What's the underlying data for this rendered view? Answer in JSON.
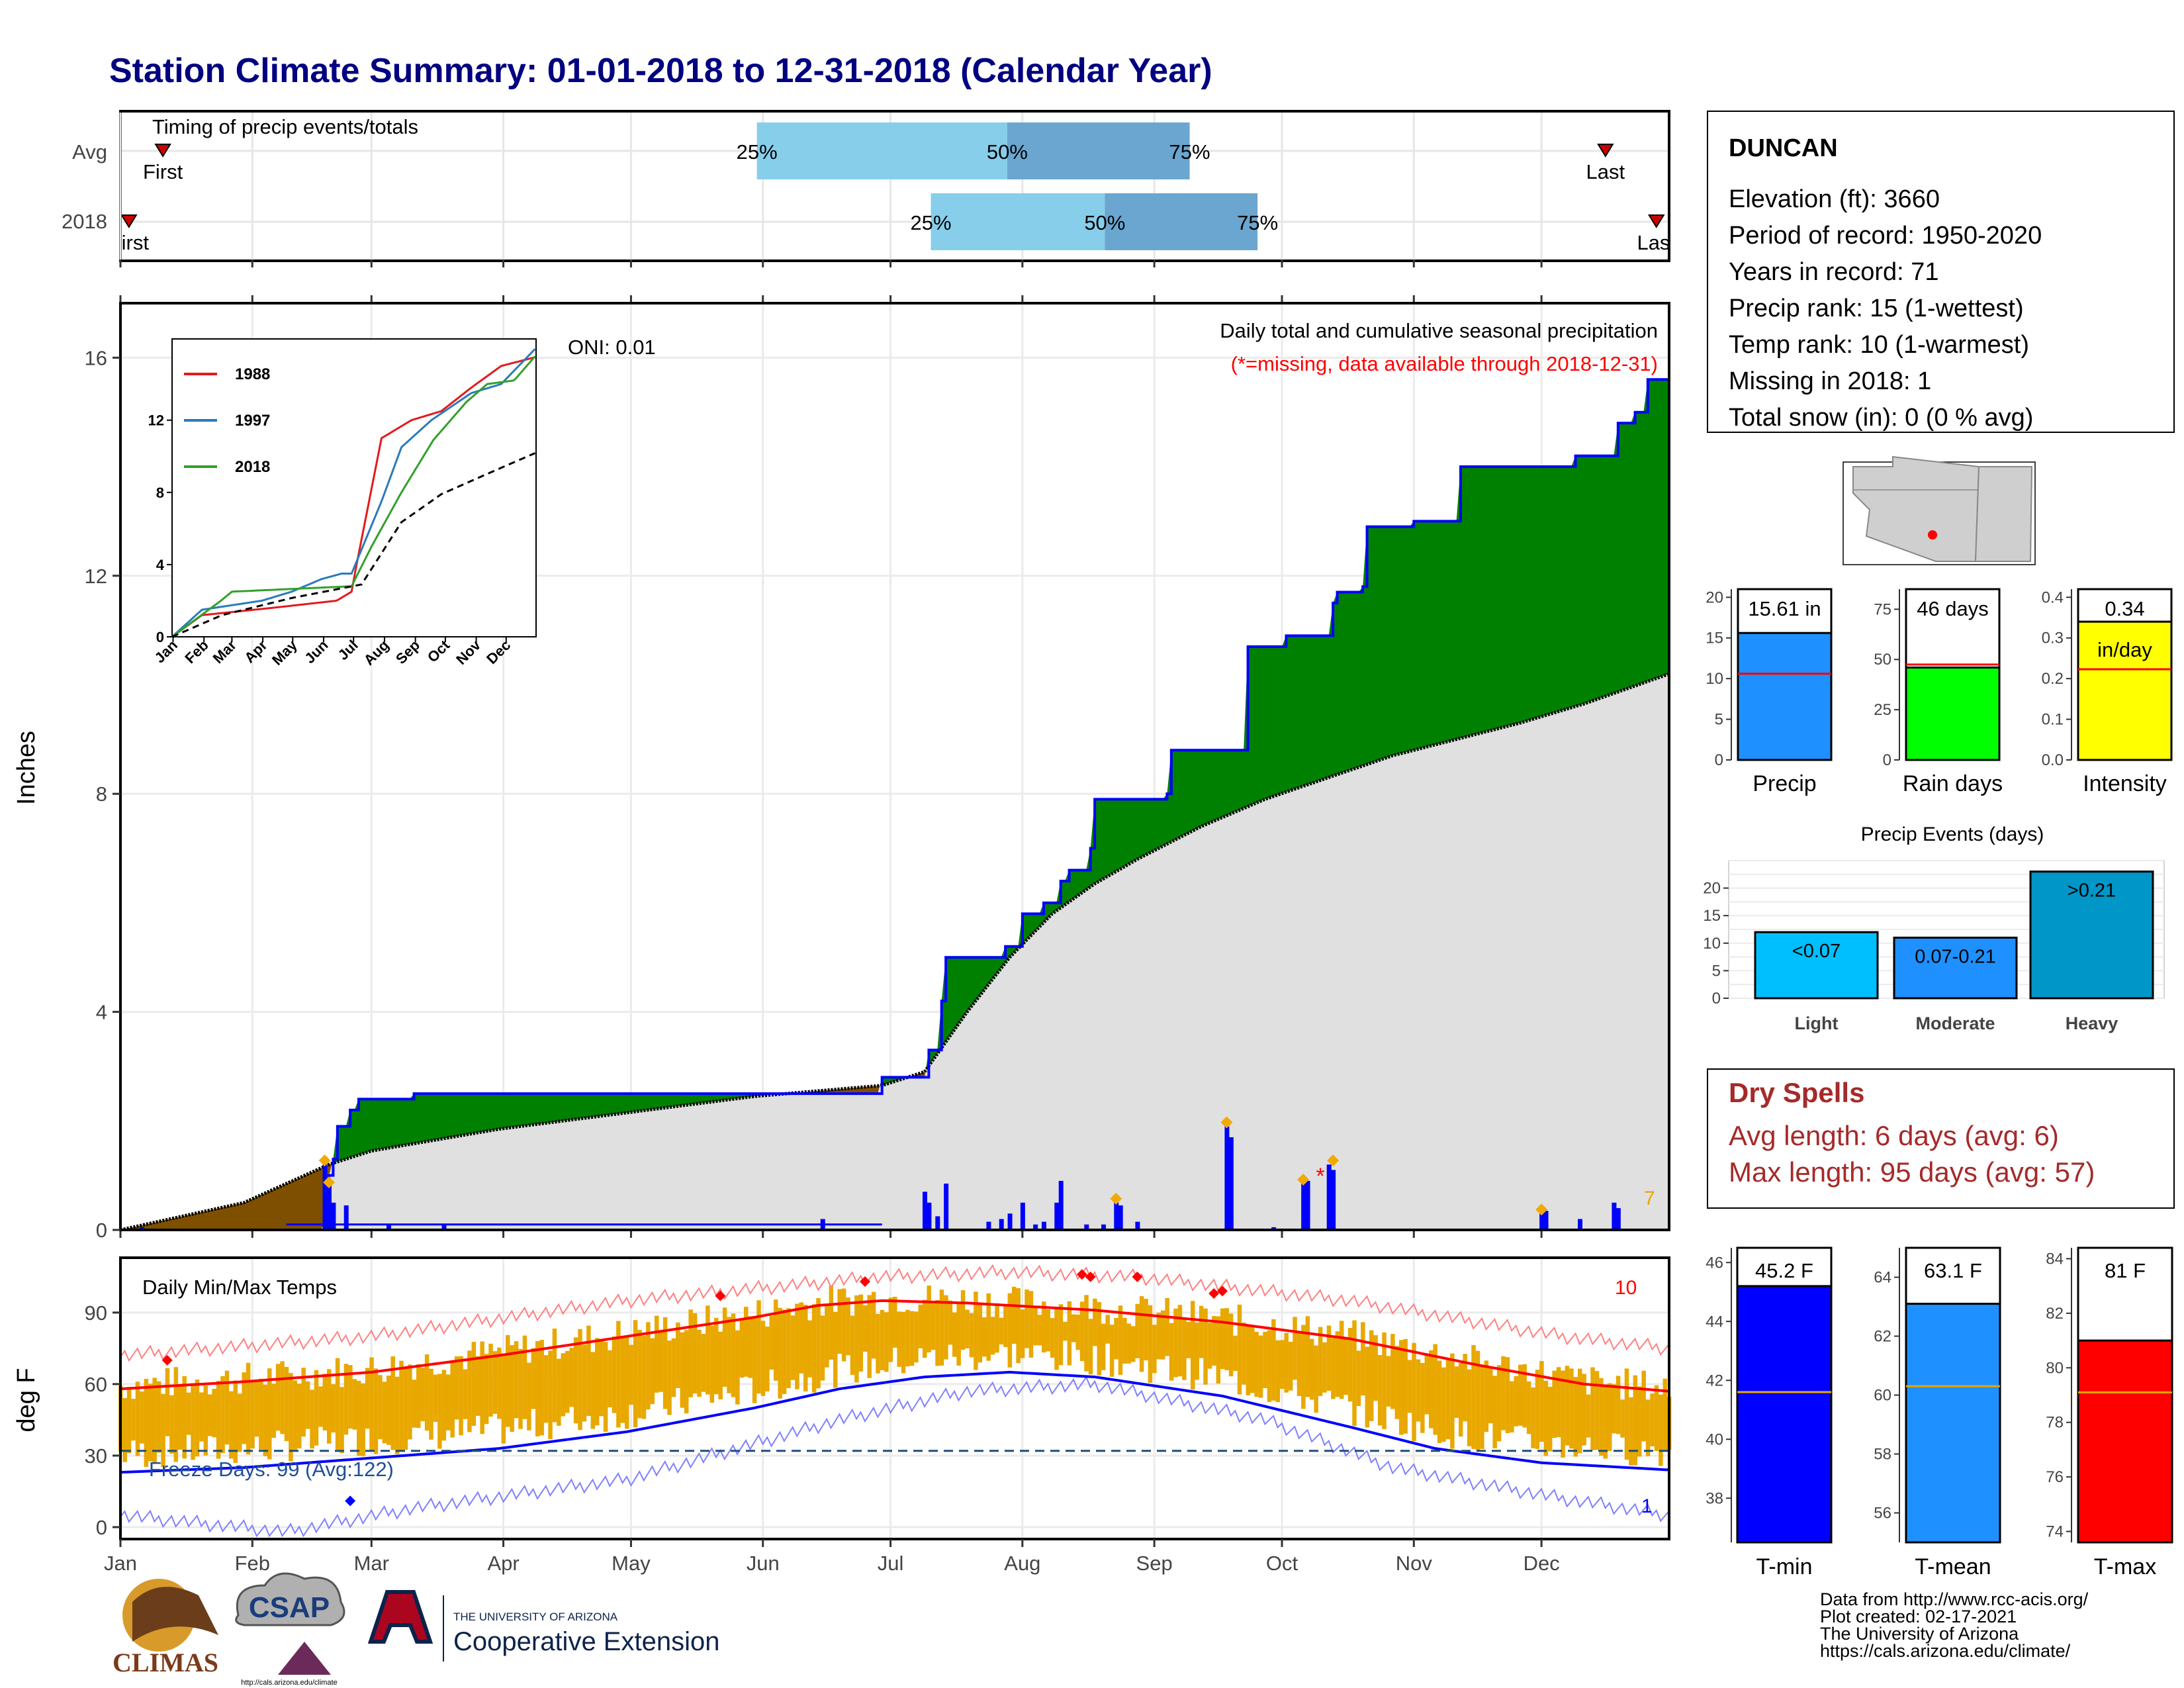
{
  "title": "Station Climate Summary: 01-01-2018 to 12-31-2018 (Calendar Year)",
  "colors": {
    "title": "#000080",
    "frame": "#000000",
    "green": "#008000",
    "brown": "#7f4f00",
    "gray_area": "#e0e0e0",
    "blue_line": "#0000ff",
    "red": "#ff0000",
    "orange": "#e8a800",
    "light_blue": "#87ceeb",
    "mid_blue": "#6aa6cf",
    "dodger": "#1e90ff",
    "lime": "#00ff00",
    "yellow": "#ffff00",
    "bar_blue": "#00bfff",
    "heavy_blue": "#0096c8",
    "drys": "#a52a2a"
  },
  "timing": {
    "label": "Timing of precip events/totals",
    "rows": [
      {
        "name": "Avg",
        "first_label": "First",
        "last_label": "Last",
        "p25_label": "25%",
        "p50_label": "50%",
        "p75_label": "75%",
        "first": 10,
        "p25": 150,
        "p50": 209,
        "p75": 252,
        "last": 350
      },
      {
        "name": "2018",
        "first_label": "First",
        "last_label": "Last",
        "p25_label": "25%",
        "p50_label": "50%",
        "p75_label": "75%",
        "first": 2,
        "p25": 191,
        "p50": 232,
        "p75": 268,
        "last": 362
      }
    ]
  },
  "station": {
    "name": "DUNCAN",
    "lines": [
      "Elevation (ft): 3660",
      "Period of record: 1950-2020",
      "Years in record: 71",
      "Precip rank: 15 (1-wettest)",
      "Temp rank: 10 (1-warmest)",
      "Missing in 2018: 1",
      "Total snow (in): 0 (0 % avg)"
    ]
  },
  "precip_panel": {
    "ylabel": "Inches",
    "annotation_title": "Daily total and cumulative seasonal precipitation",
    "annotation_missing": "(*=missing, data available through 2018-12-31)",
    "oni": "ONI: 0.01",
    "top_right_count": "7",
    "y_ticks": [
      "0",
      "4",
      "8",
      "12",
      "16"
    ]
  },
  "inset": {
    "legend": [
      "1988",
      "1997",
      "2018"
    ],
    "y_ticks": [
      "0",
      "4",
      "8",
      "12"
    ],
    "x_ticks": [
      "Jan",
      "Feb",
      "Mar",
      "Apr",
      "May",
      "Jun",
      "Jul",
      "Aug",
      "Sep",
      "Oct",
      "Nov",
      "Dec"
    ]
  },
  "summary_bars": [
    {
      "label": "Precip",
      "value_text": "15.61 in",
      "value": 15.61,
      "avg": 10.6,
      "ymax": 21,
      "ticks": [
        "0",
        "5",
        "10",
        "15",
        "20"
      ]
    },
    {
      "label": "Rain days",
      "value_text": "46 days",
      "value": 46,
      "avg": 47.5,
      "ymax": 85,
      "ticks": [
        "0",
        "25",
        "50",
        "75"
      ]
    },
    {
      "label": "Intensity",
      "value_text": "0.34",
      "value_sub": "in/day",
      "value": 0.34,
      "avg": 0.223,
      "ymax": 0.42,
      "ticks": [
        "0.0",
        "0.1",
        "0.2",
        "0.3",
        "0.4"
      ]
    }
  ],
  "precip_events": {
    "title": "Precip Events (days)",
    "ticks": [
      "0",
      "5",
      "10",
      "15",
      "20"
    ],
    "bars": [
      {
        "category": "Light",
        "label": "<0.07",
        "value": 12
      },
      {
        "category": "Moderate",
        "label": "0.07-0.21",
        "value": 11
      },
      {
        "category": "Heavy",
        "label": ">0.21",
        "value": 23
      }
    ]
  },
  "dry_spells": {
    "title": "Dry Spells",
    "avg": "Avg length: 6 days (avg: 6)",
    "max": "Max length: 95 days (avg: 57)"
  },
  "temp_panel": {
    "title": "Daily Min/Max Temps",
    "ylabel": "deg F",
    "freeze": "Freeze Days: 99 (Avg:122)",
    "count_hot": "10",
    "count_cold": "1",
    "y_ticks": [
      "0",
      "30",
      "60",
      "90"
    ],
    "months": [
      "Jan",
      "Feb",
      "Mar",
      "Apr",
      "May",
      "Jun",
      "Jul",
      "Aug",
      "Sep",
      "Oct",
      "Nov",
      "Dec"
    ]
  },
  "temp_bars": [
    {
      "label": "T-min",
      "value_text": "45.2 F",
      "value": 45.2,
      "avg": 41.6,
      "ymin": 36.5,
      "ymax": 46.5,
      "ticks": [
        "38",
        "40",
        "42",
        "44",
        "46"
      ]
    },
    {
      "label": "T-mean",
      "value_text": "63.1 F",
      "value": 63.1,
      "avg": 60.3,
      "ymin": 55,
      "ymax": 65,
      "ticks": [
        "56",
        "58",
        "60",
        "62",
        "64"
      ]
    },
    {
      "label": "T-max",
      "value_text": "81 F",
      "value": 81,
      "avg": 79.1,
      "ymin": 73.6,
      "ymax": 84.4,
      "ticks": [
        "74",
        "76",
        "78",
        "80",
        "82",
        "84"
      ]
    }
  ],
  "footer": {
    "lines": [
      "Data from http://www.rcc-acis.org/",
      "Plot created: 02-17-2021",
      "The University of Arizona",
      "https://cals.arizona.edu/climate/"
    ],
    "logo_climas": "CLIMAS",
    "logo_csap": "CSAP",
    "logo_csap_url": "http://cals.arizona.edu/climate",
    "ua_small": "THE UNIVERSITY OF ARIZONA",
    "ua_big": "Cooperative Extension"
  },
  "chart_data": {
    "type": "area",
    "title": "Daily total and cumulative seasonal precipitation",
    "ylabel": "Inches",
    "ylim": [
      0,
      17
    ],
    "x_unit": "day of year 2018",
    "cumulative_2018": [
      [
        1,
        0
      ],
      [
        49,
        0.1
      ],
      [
        50,
        1.0
      ],
      [
        51,
        1.3
      ],
      [
        52,
        1.9
      ],
      [
        55,
        2.2
      ],
      [
        57,
        2.4
      ],
      [
        70,
        2.5
      ],
      [
        150,
        2.5
      ],
      [
        180,
        2.8
      ],
      [
        190,
        2.8
      ],
      [
        191,
        3.3
      ],
      [
        194,
        4.2
      ],
      [
        195,
        5.0
      ],
      [
        209,
        5.2
      ],
      [
        213,
        5.8
      ],
      [
        218,
        6.0
      ],
      [
        222,
        6.4
      ],
      [
        224,
        6.6
      ],
      [
        229,
        7.0
      ],
      [
        230,
        7.9
      ],
      [
        247,
        8.0
      ],
      [
        248,
        8.8
      ],
      [
        262,
        8.8
      ],
      [
        266,
        10.7
      ],
      [
        275,
        10.9
      ],
      [
        286,
        11.5
      ],
      [
        287,
        11.7
      ],
      [
        293,
        11.8
      ],
      [
        294,
        12.9
      ],
      [
        305,
        13.0
      ],
      [
        315,
        13.0
      ],
      [
        316,
        14.0
      ],
      [
        340,
        14.0
      ],
      [
        343,
        14.2
      ],
      [
        350,
        14.2
      ],
      [
        353,
        14.8
      ],
      [
        357,
        15.0
      ],
      [
        360,
        15.6
      ],
      [
        365,
        15.6
      ]
    ],
    "cumulative_avg": [
      [
        1,
        0
      ],
      [
        30,
        0.5
      ],
      [
        50,
        1.2
      ],
      [
        60,
        1.45
      ],
      [
        90,
        1.85
      ],
      [
        120,
        2.15
      ],
      [
        150,
        2.45
      ],
      [
        180,
        2.65
      ],
      [
        190,
        2.9
      ],
      [
        200,
        4.0
      ],
      [
        210,
        5.0
      ],
      [
        220,
        5.8
      ],
      [
        230,
        6.35
      ],
      [
        240,
        6.8
      ],
      [
        255,
        7.4
      ],
      [
        270,
        7.9
      ],
      [
        285,
        8.3
      ],
      [
        300,
        8.7
      ],
      [
        315,
        9.0
      ],
      [
        330,
        9.3
      ],
      [
        345,
        9.65
      ],
      [
        365,
        10.2
      ]
    ],
    "daily_precip": [
      [
        6,
        0.05
      ],
      [
        49,
        1.2
      ],
      [
        50,
        0.9
      ],
      [
        51,
        0.5
      ],
      [
        54,
        0.45
      ],
      [
        64,
        0.1
      ],
      [
        77,
        0.1
      ],
      [
        166,
        0.2
      ],
      [
        190,
        0.7
      ],
      [
        191,
        0.5
      ],
      [
        193,
        0.25
      ],
      [
        195,
        0.85
      ],
      [
        205,
        0.15
      ],
      [
        208,
        0.2
      ],
      [
        210,
        0.3
      ],
      [
        213,
        0.5
      ],
      [
        216,
        0.1
      ],
      [
        218,
        0.15
      ],
      [
        221,
        0.5
      ],
      [
        222,
        0.9
      ],
      [
        228,
        0.1
      ],
      [
        232,
        0.1
      ],
      [
        235,
        0.5
      ],
      [
        236,
        0.45
      ],
      [
        240,
        0.15
      ],
      [
        261,
        1.9
      ],
      [
        262,
        1.7
      ],
      [
        272,
        0.05
      ],
      [
        279,
        0.85
      ],
      [
        280,
        0.9
      ],
      [
        285,
        1.2
      ],
      [
        286,
        1.1
      ],
      [
        335,
        0.3
      ],
      [
        336,
        0.35
      ],
      [
        344,
        0.2
      ],
      [
        352,
        0.5
      ],
      [
        353,
        0.4
      ]
    ],
    "inset_series": [
      {
        "name": "1988",
        "points": [
          [
            0,
            0
          ],
          [
            30,
            1.2
          ],
          [
            100,
            1.6
          ],
          [
            165,
            2.0
          ],
          [
            180,
            2.5
          ],
          [
            185,
            4.0
          ],
          [
            210,
            11.0
          ],
          [
            240,
            12.0
          ],
          [
            270,
            12.5
          ],
          [
            300,
            13.8
          ],
          [
            330,
            15.0
          ],
          [
            365,
            15.5
          ]
        ]
      },
      {
        "name": "1997",
        "points": [
          [
            0,
            0
          ],
          [
            30,
            1.5
          ],
          [
            90,
            2.0
          ],
          [
            120,
            2.5
          ],
          [
            150,
            3.2
          ],
          [
            170,
            3.5
          ],
          [
            180,
            3.5
          ],
          [
            210,
            7.5
          ],
          [
            230,
            10.5
          ],
          [
            260,
            12.0
          ],
          [
            300,
            13.5
          ],
          [
            330,
            14.0
          ],
          [
            365,
            16.0
          ]
        ]
      },
      {
        "name": "2018",
        "points": [
          [
            0,
            0
          ],
          [
            49,
            2.0
          ],
          [
            60,
            2.5
          ],
          [
            180,
            2.8
          ],
          [
            200,
            5.0
          ],
          [
            230,
            8.0
          ],
          [
            262,
            10.9
          ],
          [
            295,
            13.0
          ],
          [
            316,
            14.0
          ],
          [
            343,
            14.2
          ],
          [
            365,
            15.6
          ]
        ]
      },
      {
        "name": "avg",
        "points": [
          [
            0,
            0
          ],
          [
            50,
            1.2
          ],
          [
            120,
            2.15
          ],
          [
            190,
            2.9
          ],
          [
            230,
            6.35
          ],
          [
            270,
            7.9
          ],
          [
            315,
            9.0
          ],
          [
            365,
            10.2
          ]
        ]
      }
    ],
    "temperature": {
      "ylabel": "deg F",
      "ylim": [
        -5,
        113
      ],
      "freeze_line": 32,
      "avg_max_curve": [
        [
          1,
          58
        ],
        [
          30,
          61
        ],
        [
          60,
          65
        ],
        [
          90,
          72
        ],
        [
          120,
          80
        ],
        [
          150,
          88
        ],
        [
          165,
          93
        ],
        [
          180,
          95
        ],
        [
          200,
          94
        ],
        [
          230,
          91
        ],
        [
          260,
          86
        ],
        [
          290,
          79
        ],
        [
          320,
          68
        ],
        [
          345,
          60
        ],
        [
          365,
          57
        ]
      ],
      "avg_min_curve": [
        [
          1,
          23
        ],
        [
          30,
          25
        ],
        [
          60,
          29
        ],
        [
          90,
          33
        ],
        [
          120,
          40
        ],
        [
          150,
          50
        ],
        [
          170,
          58
        ],
        [
          190,
          63
        ],
        [
          210,
          65
        ],
        [
          230,
          63
        ],
        [
          260,
          55
        ],
        [
          290,
          42
        ],
        [
          310,
          33
        ],
        [
          335,
          27
        ],
        [
          365,
          24
        ]
      ],
      "record_high_curve": [
        [
          1,
          72
        ],
        [
          60,
          80
        ],
        [
          120,
          95
        ],
        [
          180,
          105
        ],
        [
          210,
          107
        ],
        [
          240,
          105
        ],
        [
          290,
          95
        ],
        [
          340,
          80
        ],
        [
          365,
          75
        ]
      ],
      "record_low_curve": [
        [
          1,
          5
        ],
        [
          40,
          -2
        ],
        [
          70,
          8
        ],
        [
          120,
          20
        ],
        [
          170,
          45
        ],
        [
          200,
          57
        ],
        [
          230,
          60
        ],
        [
          270,
          45
        ],
        [
          300,
          25
        ],
        [
          340,
          12
        ],
        [
          365,
          5
        ]
      ]
    }
  }
}
